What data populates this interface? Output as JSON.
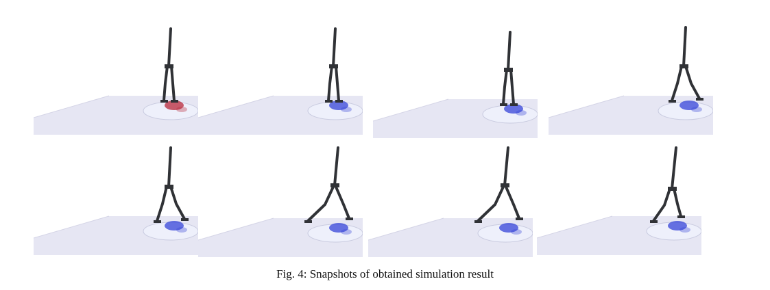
{
  "figure": {
    "number_label": "Fig. 4:",
    "caption_text": "Snapshots of obtained simulation result"
  },
  "snapshots": [
    {
      "pose": "init",
      "fluid": "red"
    },
    {
      "pose": "init",
      "fluid": "blue"
    },
    {
      "pose": "init",
      "fluid": "blue"
    },
    {
      "pose": "bend1",
      "fluid": "blue"
    },
    {
      "pose": "bend1",
      "fluid": "blue"
    },
    {
      "pose": "split",
      "fluid": "blue"
    },
    {
      "pose": "split",
      "fluid": "blue"
    },
    {
      "pose": "bend2",
      "fluid": "blue"
    }
  ],
  "colors": {
    "robot": "#303236",
    "floor": "#e6e6f3",
    "fluid_red": "#b8283a",
    "fluid_blue": "#3644d8"
  }
}
